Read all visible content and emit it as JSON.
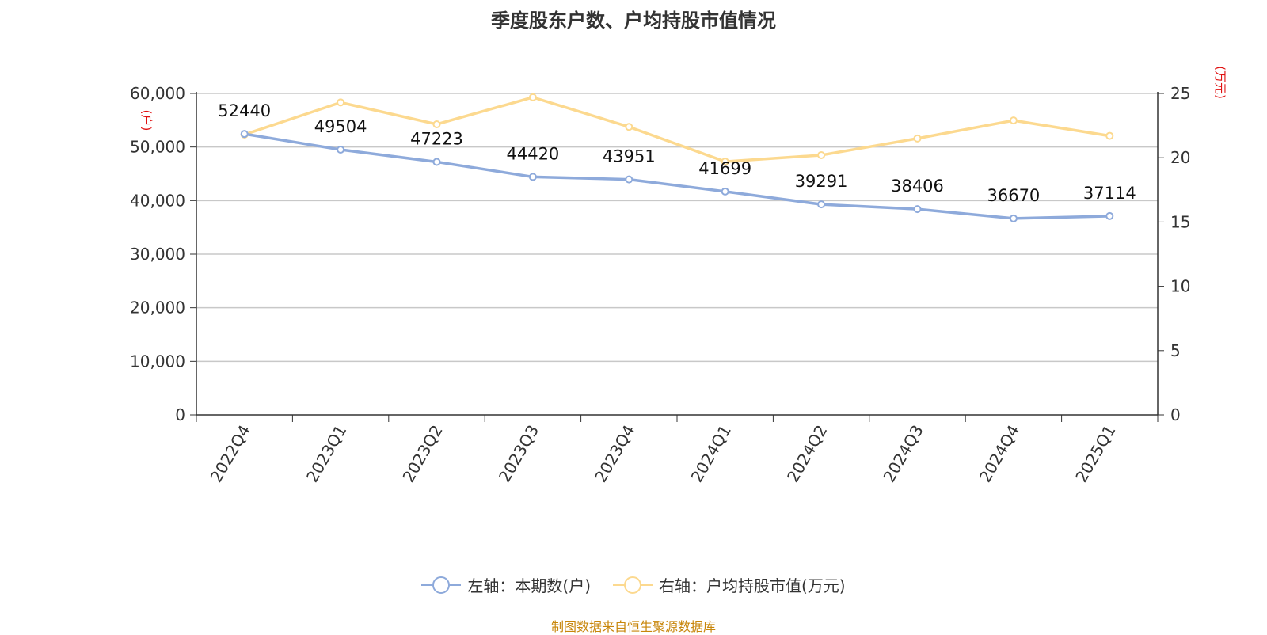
{
  "chart_data": {
    "type": "line",
    "title": "季度股东户数、户均持股市值情况",
    "categories": [
      "2022Q4",
      "2023Q1",
      "2023Q2",
      "2023Q3",
      "2023Q4",
      "2024Q1",
      "2024Q2",
      "2024Q3",
      "2024Q4",
      "2025Q1"
    ],
    "left_axis": {
      "unit": "(户)",
      "ylim": [
        0,
        60000
      ],
      "ticks": [
        0,
        10000,
        20000,
        30000,
        40000,
        50000,
        60000
      ],
      "tick_labels": [
        "0",
        "10,000",
        "20,000",
        "30,000",
        "40,000",
        "50,000",
        "60,000"
      ]
    },
    "right_axis": {
      "unit": "(万元)",
      "ylim": [
        0,
        25
      ],
      "ticks": [
        0,
        5,
        10,
        15,
        20,
        25
      ],
      "tick_labels": [
        "0",
        "5",
        "10",
        "15",
        "20",
        "25"
      ]
    },
    "series": [
      {
        "name": "左轴：本期数(户)",
        "axis": "left",
        "color": "#8eaadb",
        "values": [
          52440,
          49504,
          47223,
          44420,
          43951,
          41699,
          39291,
          38406,
          36670,
          37114
        ],
        "labels": [
          "52440",
          "49504",
          "47223",
          "44420",
          "43951",
          "41699",
          "39291",
          "38406",
          "36670",
          "37114"
        ]
      },
      {
        "name": "右轴：户均持股市值(万元)",
        "axis": "right",
        "color": "#fcd98f",
        "values": [
          21.8,
          24.3,
          22.6,
          24.7,
          22.4,
          19.7,
          20.2,
          21.5,
          22.9,
          21.7
        ]
      }
    ],
    "grid": true,
    "legend_position": "bottom"
  },
  "source_note": "制图数据来自恒生聚源数据库"
}
